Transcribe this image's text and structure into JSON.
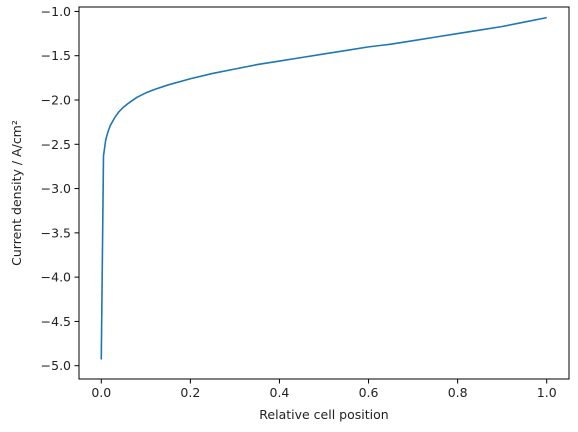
{
  "chart_data": {
    "type": "line",
    "title": "",
    "xlabel": "Relative cell position",
    "ylabel": "Current density / A/cm²",
    "xlim": [
      -0.05,
      1.05
    ],
    "ylim": [
      -5.15,
      -0.95
    ],
    "xticks": [
      0.0,
      0.2,
      0.4,
      0.6,
      0.8,
      1.0
    ],
    "xtick_labels": [
      "0.0",
      "0.2",
      "0.4",
      "0.6",
      "0.8",
      "1.0"
    ],
    "yticks": [
      -5.0,
      -4.5,
      -4.0,
      -3.5,
      -3.0,
      -2.5,
      -2.0,
      -1.5,
      -1.0
    ],
    "ytick_labels": [
      "−5.0",
      "−4.5",
      "−4.0",
      "−3.5",
      "−3.0",
      "−2.5",
      "−2.0",
      "−1.5",
      "−1.0"
    ],
    "grid": false,
    "series": [
      {
        "color": "#1f77b4",
        "x": [
          0.0,
          0.005,
          0.01,
          0.015,
          0.02,
          0.03,
          0.04,
          0.05,
          0.06,
          0.08,
          0.1,
          0.12,
          0.15,
          0.2,
          0.25,
          0.3,
          0.35,
          0.4,
          0.45,
          0.5,
          0.55,
          0.6,
          0.65,
          0.7,
          0.75,
          0.8,
          0.85,
          0.9,
          0.95,
          1.0
        ],
        "y": [
          -4.93,
          -2.63,
          -2.45,
          -2.36,
          -2.29,
          -2.2,
          -2.13,
          -2.08,
          -2.04,
          -1.97,
          -1.92,
          -1.88,
          -1.83,
          -1.76,
          -1.7,
          -1.65,
          -1.6,
          -1.56,
          -1.52,
          -1.48,
          -1.44,
          -1.4,
          -1.37,
          -1.33,
          -1.29,
          -1.25,
          -1.21,
          -1.17,
          -1.12,
          -1.07
        ]
      }
    ]
  }
}
